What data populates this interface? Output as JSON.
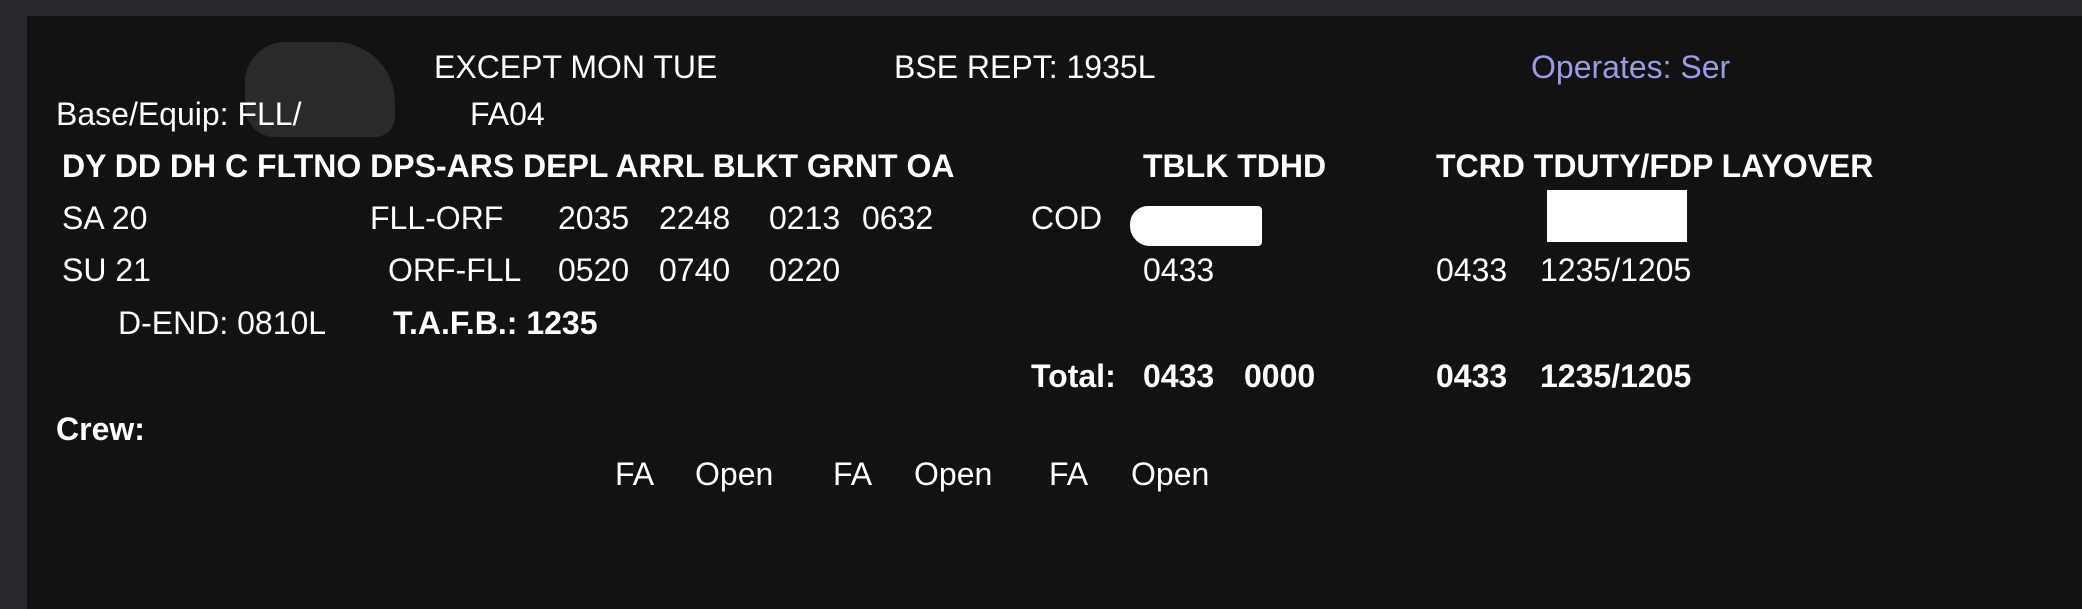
{
  "header": {
    "days_except": "EXCEPT MON TUE",
    "base_report": "BSE REPT: 1935L",
    "operates": "Operates: Ser",
    "operates_color": "#9b9be6",
    "base_equip_label": "Base/Equip: FLL/",
    "base_equip_suffix": "FA04"
  },
  "columns": {
    "left": "DY DD DH C FLTNO DPS-ARS DEPL ARRL BLKT GRNT OA",
    "mid": "TBLK TDHD",
    "right": "TCRD TDUTY/FDP LAYOVER"
  },
  "rows": [
    {
      "dy_dd": "SA 20",
      "route": "FLL-ORF",
      "depl": "2035",
      "arrl": "2248",
      "blkt": "0213",
      "grnt": "0632",
      "layover_city": "COD"
    },
    {
      "dy_dd": "SU 21",
      "route": "ORF-FLL",
      "depl": "0520",
      "arrl": "0740",
      "blkt": "0220",
      "tblk": "0433",
      "tcrd": "0433",
      "tduty_fdp": "1235/1205"
    }
  ],
  "duty_end": "D-END: 0810L",
  "tafb": "T.A.F.B.: 1235",
  "totals": {
    "label": "Total:",
    "tblk": "0433",
    "tdhd": "0000",
    "tcrd": "0433",
    "tduty_fdp": "1235/1205"
  },
  "crew": {
    "label": "Crew:",
    "positions": [
      {
        "role": "FA",
        "status": "Open"
      },
      {
        "role": "FA",
        "status": "Open"
      },
      {
        "role": "FA",
        "status": "Open"
      }
    ]
  }
}
